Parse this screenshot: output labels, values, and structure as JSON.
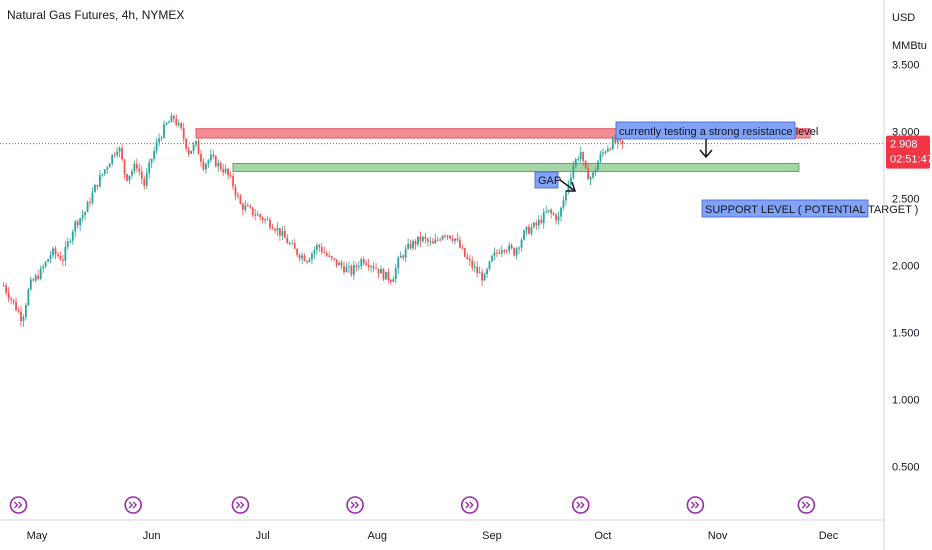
{
  "header": {
    "title": "Natural Gas Futures, 4h, NYMEX"
  },
  "price_axis": {
    "currency": "USD",
    "unit": "MMBtu"
  },
  "colors": {
    "up": "#26a69a",
    "down": "#ef5350",
    "resistance_fill": "#f28b93",
    "support_fill": "#a5d6a7",
    "note_fill": "#82a3f5",
    "last_price": "#f23645",
    "event_icon": "#9c27b0"
  },
  "chart_data": {
    "type": "candlestick",
    "title": "Natural Gas Futures, 4h, NYMEX",
    "ylim": [
      0.1,
      3.98
    ],
    "y_ticks": [
      {
        "value": 0.5,
        "label": "0.500"
      },
      {
        "value": 1.0,
        "label": "1.000"
      },
      {
        "value": 1.5,
        "label": "1.500"
      },
      {
        "value": 2.0,
        "label": "2.000"
      },
      {
        "value": 2.5,
        "label": "2.500"
      },
      {
        "value": 3.0,
        "label": "3.000"
      },
      {
        "value": 3.5,
        "label": "3.500"
      }
    ],
    "x_ticks": [
      {
        "day": 0,
        "label": "May"
      },
      {
        "day": 31,
        "label": "Jun"
      },
      {
        "day": 61,
        "label": "Jul"
      },
      {
        "day": 92,
        "label": "Aug"
      },
      {
        "day": 123,
        "label": "Sep"
      },
      {
        "day": 153,
        "label": "Oct"
      },
      {
        "day": 184,
        "label": "Nov"
      },
      {
        "day": 214,
        "label": "Dec"
      }
    ],
    "x_range_days": [
      -10,
      229
    ],
    "price_path": [
      [
        -9,
        1.85
      ],
      [
        -6,
        1.7
      ],
      [
        -4,
        1.6
      ],
      [
        -2,
        1.85
      ],
      [
        1,
        1.95
      ],
      [
        4,
        2.1
      ],
      [
        7,
        2.05
      ],
      [
        10,
        2.3
      ],
      [
        13,
        2.4
      ],
      [
        16,
        2.6
      ],
      [
        19,
        2.75
      ],
      [
        22,
        2.9
      ],
      [
        24,
        2.65
      ],
      [
        27,
        2.75
      ],
      [
        29,
        2.6
      ],
      [
        31,
        2.8
      ],
      [
        33,
        2.95
      ],
      [
        35,
        3.05
      ],
      [
        37,
        3.1
      ],
      [
        39,
        3.0
      ],
      [
        41,
        2.85
      ],
      [
        43,
        2.9
      ],
      [
        45,
        2.75
      ],
      [
        47,
        2.8
      ],
      [
        49,
        2.75
      ],
      [
        51,
        2.7
      ],
      [
        53,
        2.6
      ],
      [
        55,
        2.45
      ],
      [
        58,
        2.4
      ],
      [
        61,
        2.35
      ],
      [
        64,
        2.3
      ],
      [
        67,
        2.2
      ],
      [
        70,
        2.1
      ],
      [
        73,
        2.05
      ],
      [
        76,
        2.15
      ],
      [
        79,
        2.05
      ],
      [
        82,
        2.0
      ],
      [
        85,
        1.95
      ],
      [
        88,
        2.05
      ],
      [
        91,
        2.0
      ],
      [
        94,
        1.92
      ],
      [
        96,
        1.9
      ],
      [
        98,
        2.05
      ],
      [
        101,
        2.15
      ],
      [
        104,
        2.2
      ],
      [
        107,
        2.15
      ],
      [
        110,
        2.25
      ],
      [
        113,
        2.2
      ],
      [
        116,
        2.05
      ],
      [
        119,
        1.95
      ],
      [
        121,
        1.9
      ],
      [
        123,
        2.05
      ],
      [
        126,
        2.15
      ],
      [
        129,
        2.1
      ],
      [
        132,
        2.25
      ],
      [
        135,
        2.3
      ],
      [
        138,
        2.4
      ],
      [
        141,
        2.35
      ],
      [
        143,
        2.55
      ],
      [
        145,
        2.75
      ],
      [
        147,
        2.85
      ],
      [
        148,
        2.7
      ],
      [
        150,
        2.65
      ],
      [
        152,
        2.8
      ],
      [
        154,
        2.88
      ],
      [
        156,
        2.92
      ],
      [
        158,
        2.9
      ],
      [
        158.8,
        2.908
      ]
    ],
    "last_price": {
      "value": 2.908,
      "label": "2.908",
      "countdown": "02:51:47"
    },
    "zones": [
      {
        "name": "resistance",
        "from_day": 43,
        "to_day": 209,
        "low": 2.95,
        "high": 3.02
      },
      {
        "name": "support",
        "from_day": 53,
        "to_day": 206,
        "low": 2.7,
        "high": 2.76
      }
    ],
    "event_icon_days": [
      -5,
      26,
      55,
      86,
      117,
      147,
      178,
      208
    ]
  },
  "annotations": {
    "resistance_note": "currently testing a strong resistance level",
    "support_note": "SUPPORT LEVEL ( POTENTIAL TARGET )",
    "gap_note": "GAP"
  }
}
